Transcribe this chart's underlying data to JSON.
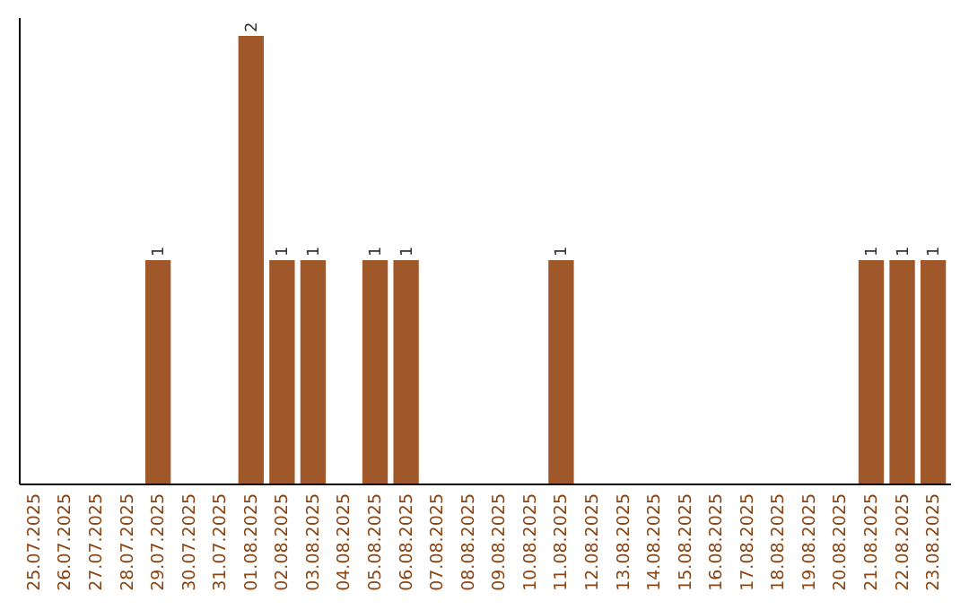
{
  "chart_data": {
    "type": "bar",
    "categories": [
      "25.07.2025",
      "26.07.2025",
      "27.07.2025",
      "28.07.2025",
      "29.07.2025",
      "30.07.2025",
      "31.07.2025",
      "01.08.2025",
      "02.08.2025",
      "03.08.2025",
      "04.08.2025",
      "05.08.2025",
      "06.08.2025",
      "07.08.2025",
      "08.08.2025",
      "09.08.2025",
      "10.08.2025",
      "11.08.2025",
      "12.08.2025",
      "13.08.2025",
      "14.08.2025",
      "15.08.2025",
      "16.08.2025",
      "17.08.2025",
      "18.08.2025",
      "19.08.2025",
      "20.08.2025",
      "21.08.2025",
      "22.08.2025",
      "23.08.2025"
    ],
    "values": [
      0,
      0,
      0,
      0,
      1,
      0,
      0,
      2,
      1,
      1,
      0,
      1,
      1,
      0,
      0,
      0,
      0,
      1,
      0,
      0,
      0,
      0,
      0,
      0,
      0,
      0,
      0,
      1,
      1,
      1
    ],
    "value_labels": [
      null,
      null,
      null,
      null,
      "1",
      null,
      null,
      "2",
      "1",
      "1",
      null,
      "1",
      "1",
      null,
      null,
      null,
      null,
      "1",
      null,
      null,
      null,
      null,
      null,
      null,
      null,
      null,
      null,
      "1",
      "1",
      "1"
    ],
    "color": "#a0582a"
  }
}
